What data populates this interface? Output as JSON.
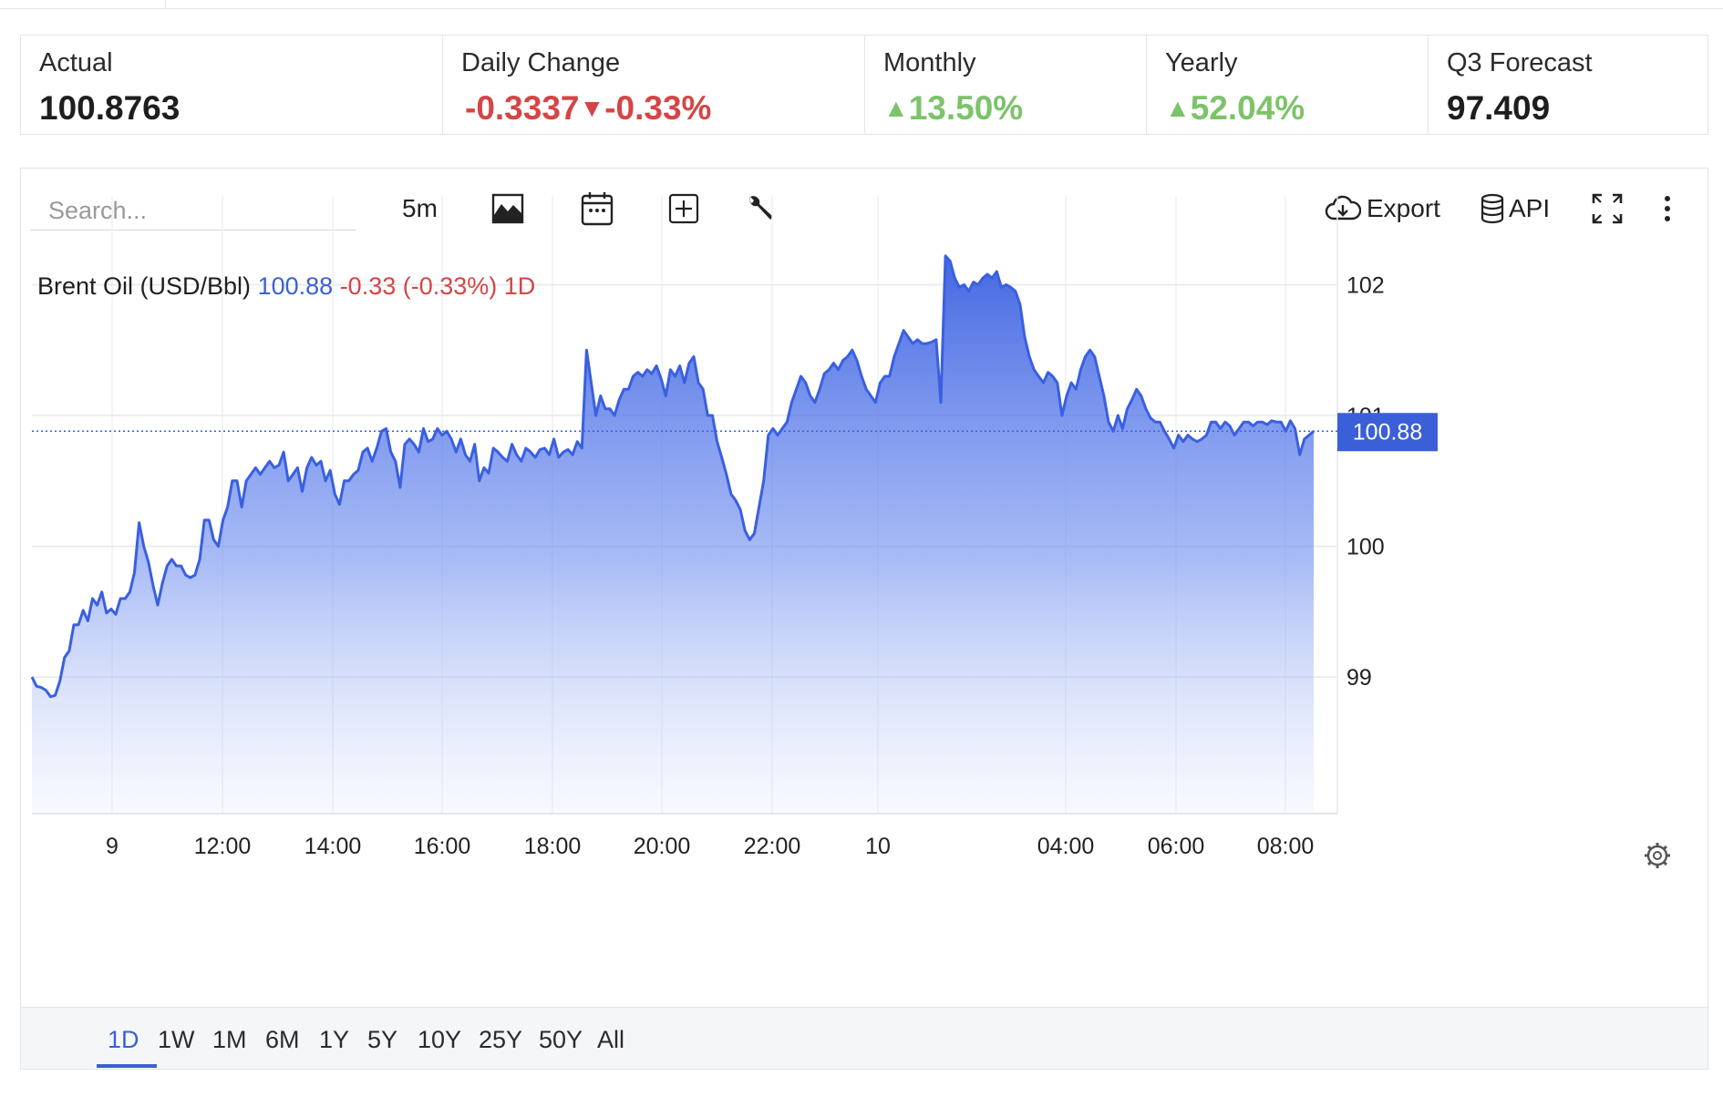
{
  "stats": [
    {
      "label": "Actual",
      "value": "100.8763",
      "color": "#1e1e1e"
    },
    {
      "label": "Daily Change",
      "value": "-0.3337",
      "arrow": "▼",
      "value2": "-0.33%",
      "color": "#d64545"
    },
    {
      "label": "Monthly",
      "arrow": "▲",
      "value": "13.50%",
      "color": "#7cc36a"
    },
    {
      "label": "Yearly",
      "arrow": "▲",
      "value": "52.04%",
      "color": "#7cc36a"
    },
    {
      "label": "Q3 Forecast",
      "value": "97.409",
      "color": "#1e1e1e"
    }
  ],
  "toolbar": {
    "search_placeholder": "Search...",
    "interval": "5m",
    "export_label": "Export",
    "api_label": "API",
    "icons": [
      "area-chart-icon",
      "calendar-icon",
      "add-box-icon",
      "wrench-icon",
      "cloud-download-icon",
      "database-icon",
      "fullscreen-icon",
      "more-vert-icon"
    ]
  },
  "legend": {
    "name": "Brent Oil (USD/Bbl)",
    "price": "100.88",
    "change": "-0.33 (-0.33%) 1D"
  },
  "ranges": [
    "1D",
    "1W",
    "1M",
    "6M",
    "1Y",
    "5Y",
    "10Y",
    "25Y",
    "50Y",
    "All"
  ],
  "active_range": "1D",
  "colors": {
    "accent": "#3b5fd8",
    "line": "#3a5fe0",
    "negative": "#d64545",
    "positive": "#7cc36a"
  },
  "chart_data": {
    "type": "area",
    "title": "Brent Oil (USD/Bbl)",
    "xlabel": "",
    "ylabel": "",
    "x_ticks": [
      "9",
      "12:00",
      "14:00",
      "16:00",
      "18:00",
      "20:00",
      "22:00",
      "10",
      "04:00",
      "06:00",
      "08:00"
    ],
    "y_ticks": [
      99,
      100,
      101,
      102
    ],
    "ylim": [
      97.97,
      102.47
    ],
    "grid": true,
    "last_price_label": "100.88",
    "last_price": 100.88,
    "series": [
      {
        "values": [
          99.0,
          98.93,
          98.92,
          98.9,
          98.85,
          98.86,
          98.97,
          99.15,
          99.2,
          99.4,
          99.4,
          99.51,
          99.43,
          99.6,
          99.55,
          99.65,
          99.49,
          99.52,
          99.48,
          99.6,
          99.6,
          99.65,
          99.8,
          100.18,
          100.0,
          99.88,
          99.7,
          99.55,
          99.72,
          99.85,
          99.9,
          99.85,
          99.85,
          99.78,
          99.76,
          99.78,
          99.9,
          100.2,
          100.2,
          100.05,
          100.0,
          100.2,
          100.3,
          100.5,
          100.5,
          100.3,
          100.5,
          100.55,
          100.6,
          100.55,
          100.6,
          100.65,
          100.6,
          100.62,
          100.72,
          100.5,
          100.55,
          100.6,
          100.42,
          100.6,
          100.68,
          100.62,
          100.65,
          100.5,
          100.58,
          100.4,
          100.32,
          100.5,
          100.5,
          100.55,
          100.58,
          100.72,
          100.75,
          100.65,
          100.75,
          100.88,
          100.9,
          100.72,
          100.65,
          100.45,
          100.78,
          100.82,
          100.78,
          100.72,
          100.9,
          100.8,
          100.82,
          100.9,
          100.85,
          100.88,
          100.82,
          100.72,
          100.82,
          100.7,
          100.65,
          100.78,
          100.5,
          100.6,
          100.56,
          100.75,
          100.72,
          100.68,
          100.65,
          100.78,
          100.7,
          100.65,
          100.75,
          100.72,
          100.68,
          100.74,
          100.75,
          100.7,
          100.82,
          100.68,
          100.72,
          100.74,
          100.7,
          100.8,
          100.75,
          101.5,
          101.25,
          101.0,
          101.15,
          101.05,
          101.05,
          101.0,
          101.12,
          101.2,
          101.2,
          101.3,
          101.33,
          101.3,
          101.35,
          101.32,
          101.38,
          101.28,
          101.15,
          101.35,
          101.3,
          101.38,
          101.25,
          101.4,
          101.45,
          101.25,
          101.2,
          101.0,
          101.0,
          100.8,
          100.68,
          100.55,
          100.4,
          100.35,
          100.28,
          100.12,
          100.05,
          100.1,
          100.3,
          100.5,
          100.85,
          100.9,
          100.85,
          100.9,
          100.95,
          101.1,
          101.2,
          101.3,
          101.25,
          101.15,
          101.1,
          101.2,
          101.32,
          101.35,
          101.4,
          101.35,
          101.42,
          101.45,
          101.5,
          101.42,
          101.3,
          101.2,
          101.15,
          101.1,
          101.25,
          101.3,
          101.3,
          101.45,
          101.55,
          101.65,
          101.6,
          101.55,
          101.58,
          101.55,
          101.55,
          101.56,
          101.58,
          101.1,
          102.22,
          102.18,
          102.05,
          101.98,
          102.0,
          101.95,
          102.02,
          102.0,
          102.05,
          102.08,
          102.05,
          102.1,
          101.98,
          102.0,
          101.98,
          101.95,
          101.85,
          101.6,
          101.45,
          101.35,
          101.3,
          101.25,
          101.33,
          101.3,
          101.25,
          101.0,
          101.15,
          101.25,
          101.2,
          101.35,
          101.45,
          101.5,
          101.45,
          101.3,
          101.15,
          100.95,
          100.88,
          101.0,
          100.9,
          101.05,
          101.12,
          101.2,
          101.15,
          101.05,
          100.98,
          100.95,
          100.95,
          100.88,
          100.82,
          100.75,
          100.85,
          100.8,
          100.85,
          100.82,
          100.8,
          100.82,
          100.85,
          100.95,
          100.95,
          100.9,
          100.95,
          100.92,
          100.85,
          100.9,
          100.95,
          100.95,
          100.92,
          100.95,
          100.95,
          100.93,
          100.96,
          100.95,
          100.95,
          100.88,
          100.96,
          100.9,
          100.7,
          100.82,
          100.85,
          100.88
        ]
      }
    ]
  }
}
